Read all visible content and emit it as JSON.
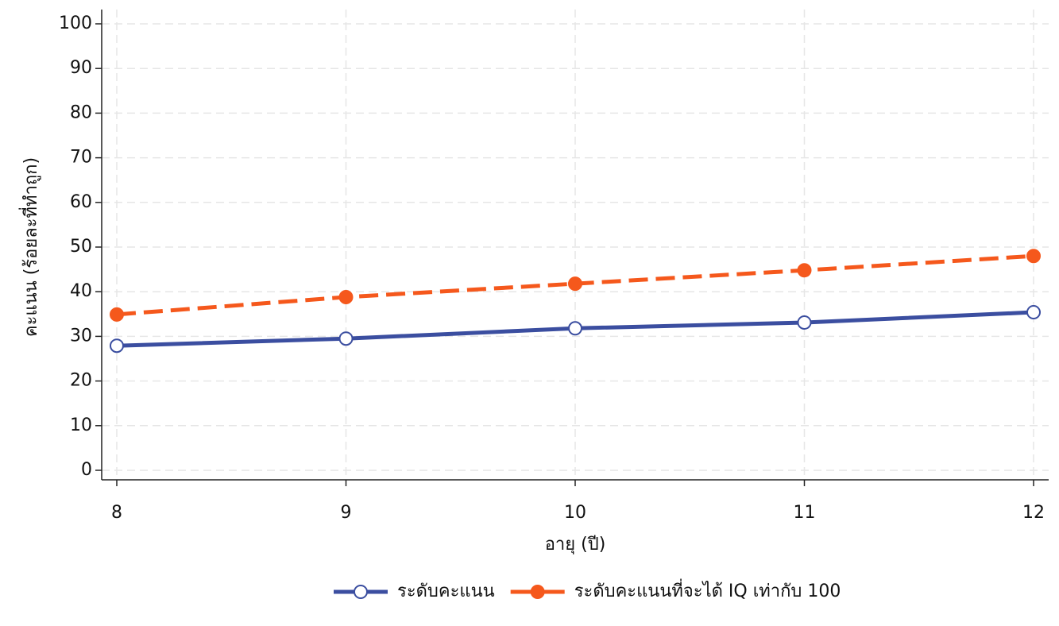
{
  "chart_data": {
    "type": "line",
    "x_label": "อายุ (ปี)",
    "y_label": "คะแนน (ร้อยละที่ทำถูก)",
    "x": [
      8,
      9,
      10,
      11,
      12
    ],
    "xlim": [
      8,
      12
    ],
    "xticks": [
      8,
      9,
      10,
      11,
      12
    ],
    "ylim": [
      0,
      100
    ],
    "yticks": [
      0,
      10,
      20,
      30,
      40,
      50,
      60,
      70,
      80,
      90,
      100
    ],
    "grid": true,
    "legend": "bottom",
    "series": [
      {
        "name": "ระดับคะแนน",
        "color": "#3b4ea0",
        "line": "solid",
        "marker": "hollow",
        "values": [
          27.9,
          29.5,
          31.8,
          33.1,
          35.4
        ]
      },
      {
        "name": "ระดับคะแนนที่จะได้ IQ เท่ากับ 100",
        "color": "#f5581c",
        "line": "dashed",
        "marker": "filled",
        "values": [
          34.9,
          38.8,
          41.8,
          44.8,
          48.0
        ]
      }
    ]
  }
}
